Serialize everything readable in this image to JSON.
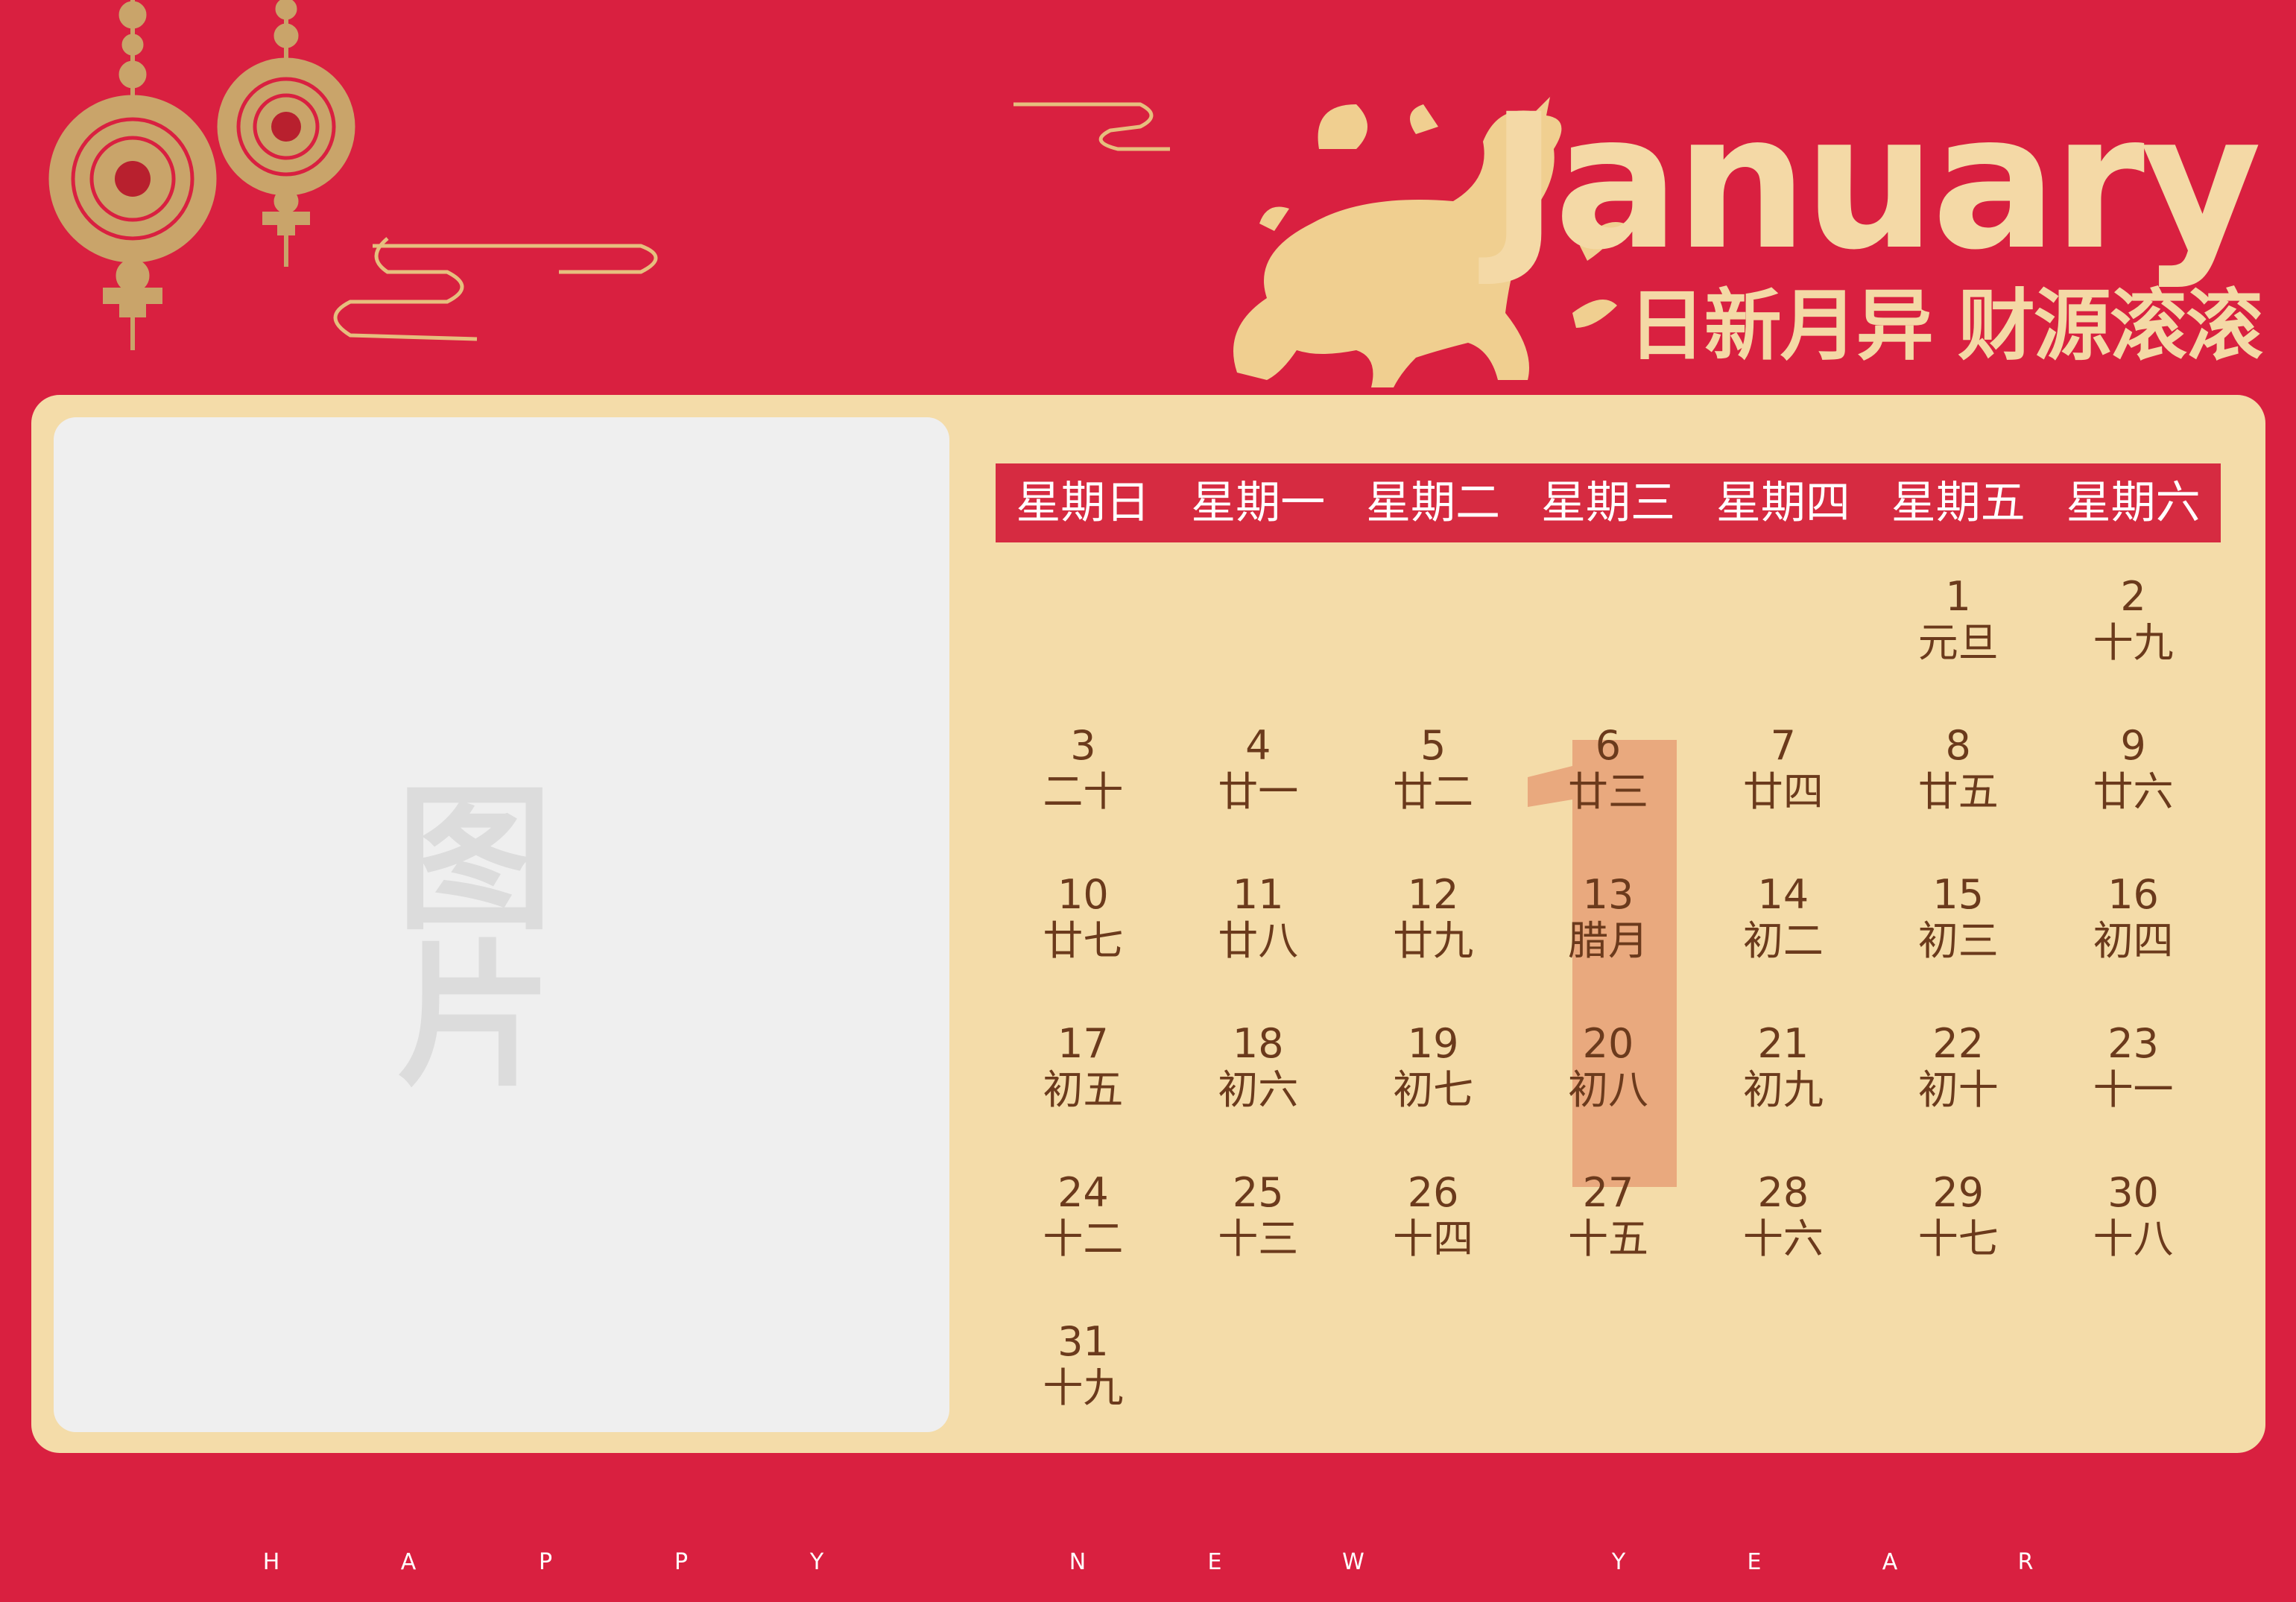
{
  "title": "January",
  "subtitle": "日新月异 财源滚滚",
  "photo_placeholder": "图片",
  "big_numeral": "1",
  "weekdays": [
    "星期日",
    "星期一",
    "星期二",
    "星期三",
    "星期四",
    "星期五",
    "星期六"
  ],
  "days": [
    {
      "num": "1",
      "lunar": "元旦"
    },
    {
      "num": "2",
      "lunar": "十九"
    },
    {
      "num": "3",
      "lunar": "二十"
    },
    {
      "num": "4",
      "lunar": "廿一"
    },
    {
      "num": "5",
      "lunar": "廿二"
    },
    {
      "num": "6",
      "lunar": "廿三"
    },
    {
      "num": "7",
      "lunar": "廿四"
    },
    {
      "num": "8",
      "lunar": "廿五"
    },
    {
      "num": "9",
      "lunar": "廿六"
    },
    {
      "num": "10",
      "lunar": "廿七"
    },
    {
      "num": "11",
      "lunar": "廿八"
    },
    {
      "num": "12",
      "lunar": "廿九"
    },
    {
      "num": "13",
      "lunar": "腊月"
    },
    {
      "num": "14",
      "lunar": "初二"
    },
    {
      "num": "15",
      "lunar": "初三"
    },
    {
      "num": "16",
      "lunar": "初四"
    },
    {
      "num": "17",
      "lunar": "初五"
    },
    {
      "num": "18",
      "lunar": "初六"
    },
    {
      "num": "19",
      "lunar": "初七"
    },
    {
      "num": "20",
      "lunar": "初八"
    },
    {
      "num": "21",
      "lunar": "初九"
    },
    {
      "num": "22",
      "lunar": "初十"
    },
    {
      "num": "23",
      "lunar": "十一"
    },
    {
      "num": "24",
      "lunar": "十二"
    },
    {
      "num": "25",
      "lunar": "十三"
    },
    {
      "num": "26",
      "lunar": "十四"
    },
    {
      "num": "27",
      "lunar": "十五"
    },
    {
      "num": "28",
      "lunar": "十六"
    },
    {
      "num": "29",
      "lunar": "十七"
    },
    {
      "num": "30",
      "lunar": "十八"
    },
    {
      "num": "31",
      "lunar": "十九"
    }
  ],
  "first_weekday_index": 5,
  "footer_letters": [
    "H",
    "A",
    "P",
    "P",
    "Y",
    "N",
    "E",
    "W",
    "Y",
    "E",
    "A",
    "R"
  ],
  "colors": {
    "background": "#d92040",
    "cream": "#f4dca9",
    "gold": "#f4d9a6",
    "accent_bar": "#d62b41",
    "text": "#6b3a1c",
    "numeral": "#e9a97e"
  }
}
